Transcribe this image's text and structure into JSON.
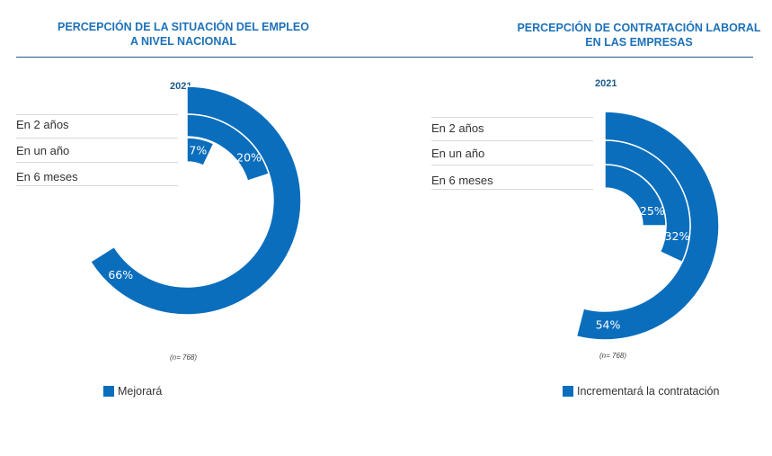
{
  "colors": {
    "series": "#0a6ebd",
    "rule": "#1d5b8c",
    "title": "#1d71b8"
  },
  "chart_data": [
    {
      "type": "radial-bar",
      "title": "PERCEPCIÓN DE LA SITUACIÓN DEL EMPLEO A NIVEL NACIONAL",
      "year": "2021",
      "categories": [
        "En 2 años",
        "En un año",
        "En 6 meses"
      ],
      "series": [
        {
          "name": "Mejorará",
          "values": [
            66,
            20,
            7
          ],
          "labels": [
            "66%",
            "20%",
            "7%"
          ]
        }
      ],
      "note": "(n= 768)",
      "legend": "Mejorará"
    },
    {
      "type": "radial-bar",
      "title": "PERCEPCIÓN DE CONTRATACIÓN LABORAL EN LAS EMPRESAS",
      "year": "2021",
      "categories": [
        "En 2 años",
        "En un año",
        "En 6 meses"
      ],
      "series": [
        {
          "name": "Incrementará la contratación",
          "values": [
            54,
            32,
            25
          ],
          "labels": [
            "54%",
            "32%",
            "25%"
          ]
        }
      ],
      "note": "(n= 768)",
      "legend": "Incrementará la contratación"
    }
  ]
}
